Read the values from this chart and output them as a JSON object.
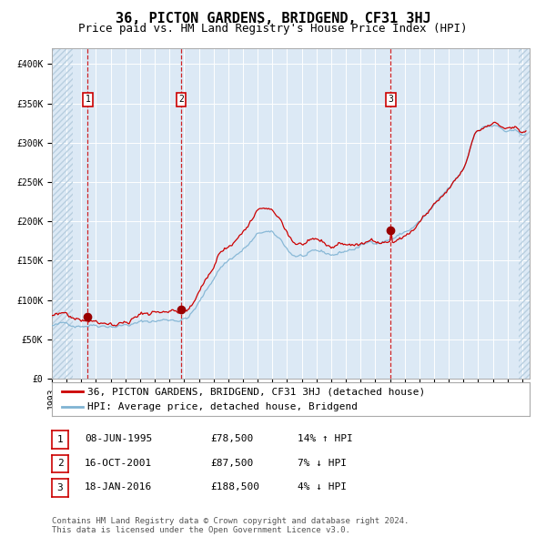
{
  "title": "36, PICTON GARDENS, BRIDGEND, CF31 3HJ",
  "subtitle": "Price paid vs. HM Land Registry's House Price Index (HPI)",
  "xlim_start": 1993.0,
  "xlim_end": 2025.5,
  "ylim_min": 0,
  "ylim_max": 420000,
  "yticks": [
    0,
    50000,
    100000,
    150000,
    200000,
    250000,
    300000,
    350000,
    400000
  ],
  "ytick_labels": [
    "£0",
    "£50K",
    "£100K",
    "£150K",
    "£200K",
    "£250K",
    "£300K",
    "£350K",
    "£400K"
  ],
  "plot_bg_color": "#dce9f5",
  "hatch_color": "#b8cfe0",
  "grid_color": "#ffffff",
  "hpi_line_color": "#7fb3d3",
  "price_line_color": "#cc0000",
  "dot_color": "#990000",
  "vline_color": "#cc0000",
  "sale_dates": [
    1995.44,
    2001.79,
    2016.05
  ],
  "sale_prices": [
    78500,
    87500,
    188500
  ],
  "marker_labels": [
    "1",
    "2",
    "3"
  ],
  "legend_label_red": "36, PICTON GARDENS, BRIDGEND, CF31 3HJ (detached house)",
  "legend_label_blue": "HPI: Average price, detached house, Bridgend",
  "table_data": [
    [
      "1",
      "08-JUN-1995",
      "£78,500",
      "14% ↑ HPI"
    ],
    [
      "2",
      "16-OCT-2001",
      "£87,500",
      "7% ↓ HPI"
    ],
    [
      "3",
      "18-JAN-2016",
      "£188,500",
      "4% ↓ HPI"
    ]
  ],
  "footnote": "Contains HM Land Registry data © Crown copyright and database right 2024.\nThis data is licensed under the Open Government Licence v3.0.",
  "title_fontsize": 11,
  "subtitle_fontsize": 9,
  "tick_fontsize": 7,
  "legend_fontsize": 8,
  "table_fontsize": 8,
  "footnote_fontsize": 6.5
}
